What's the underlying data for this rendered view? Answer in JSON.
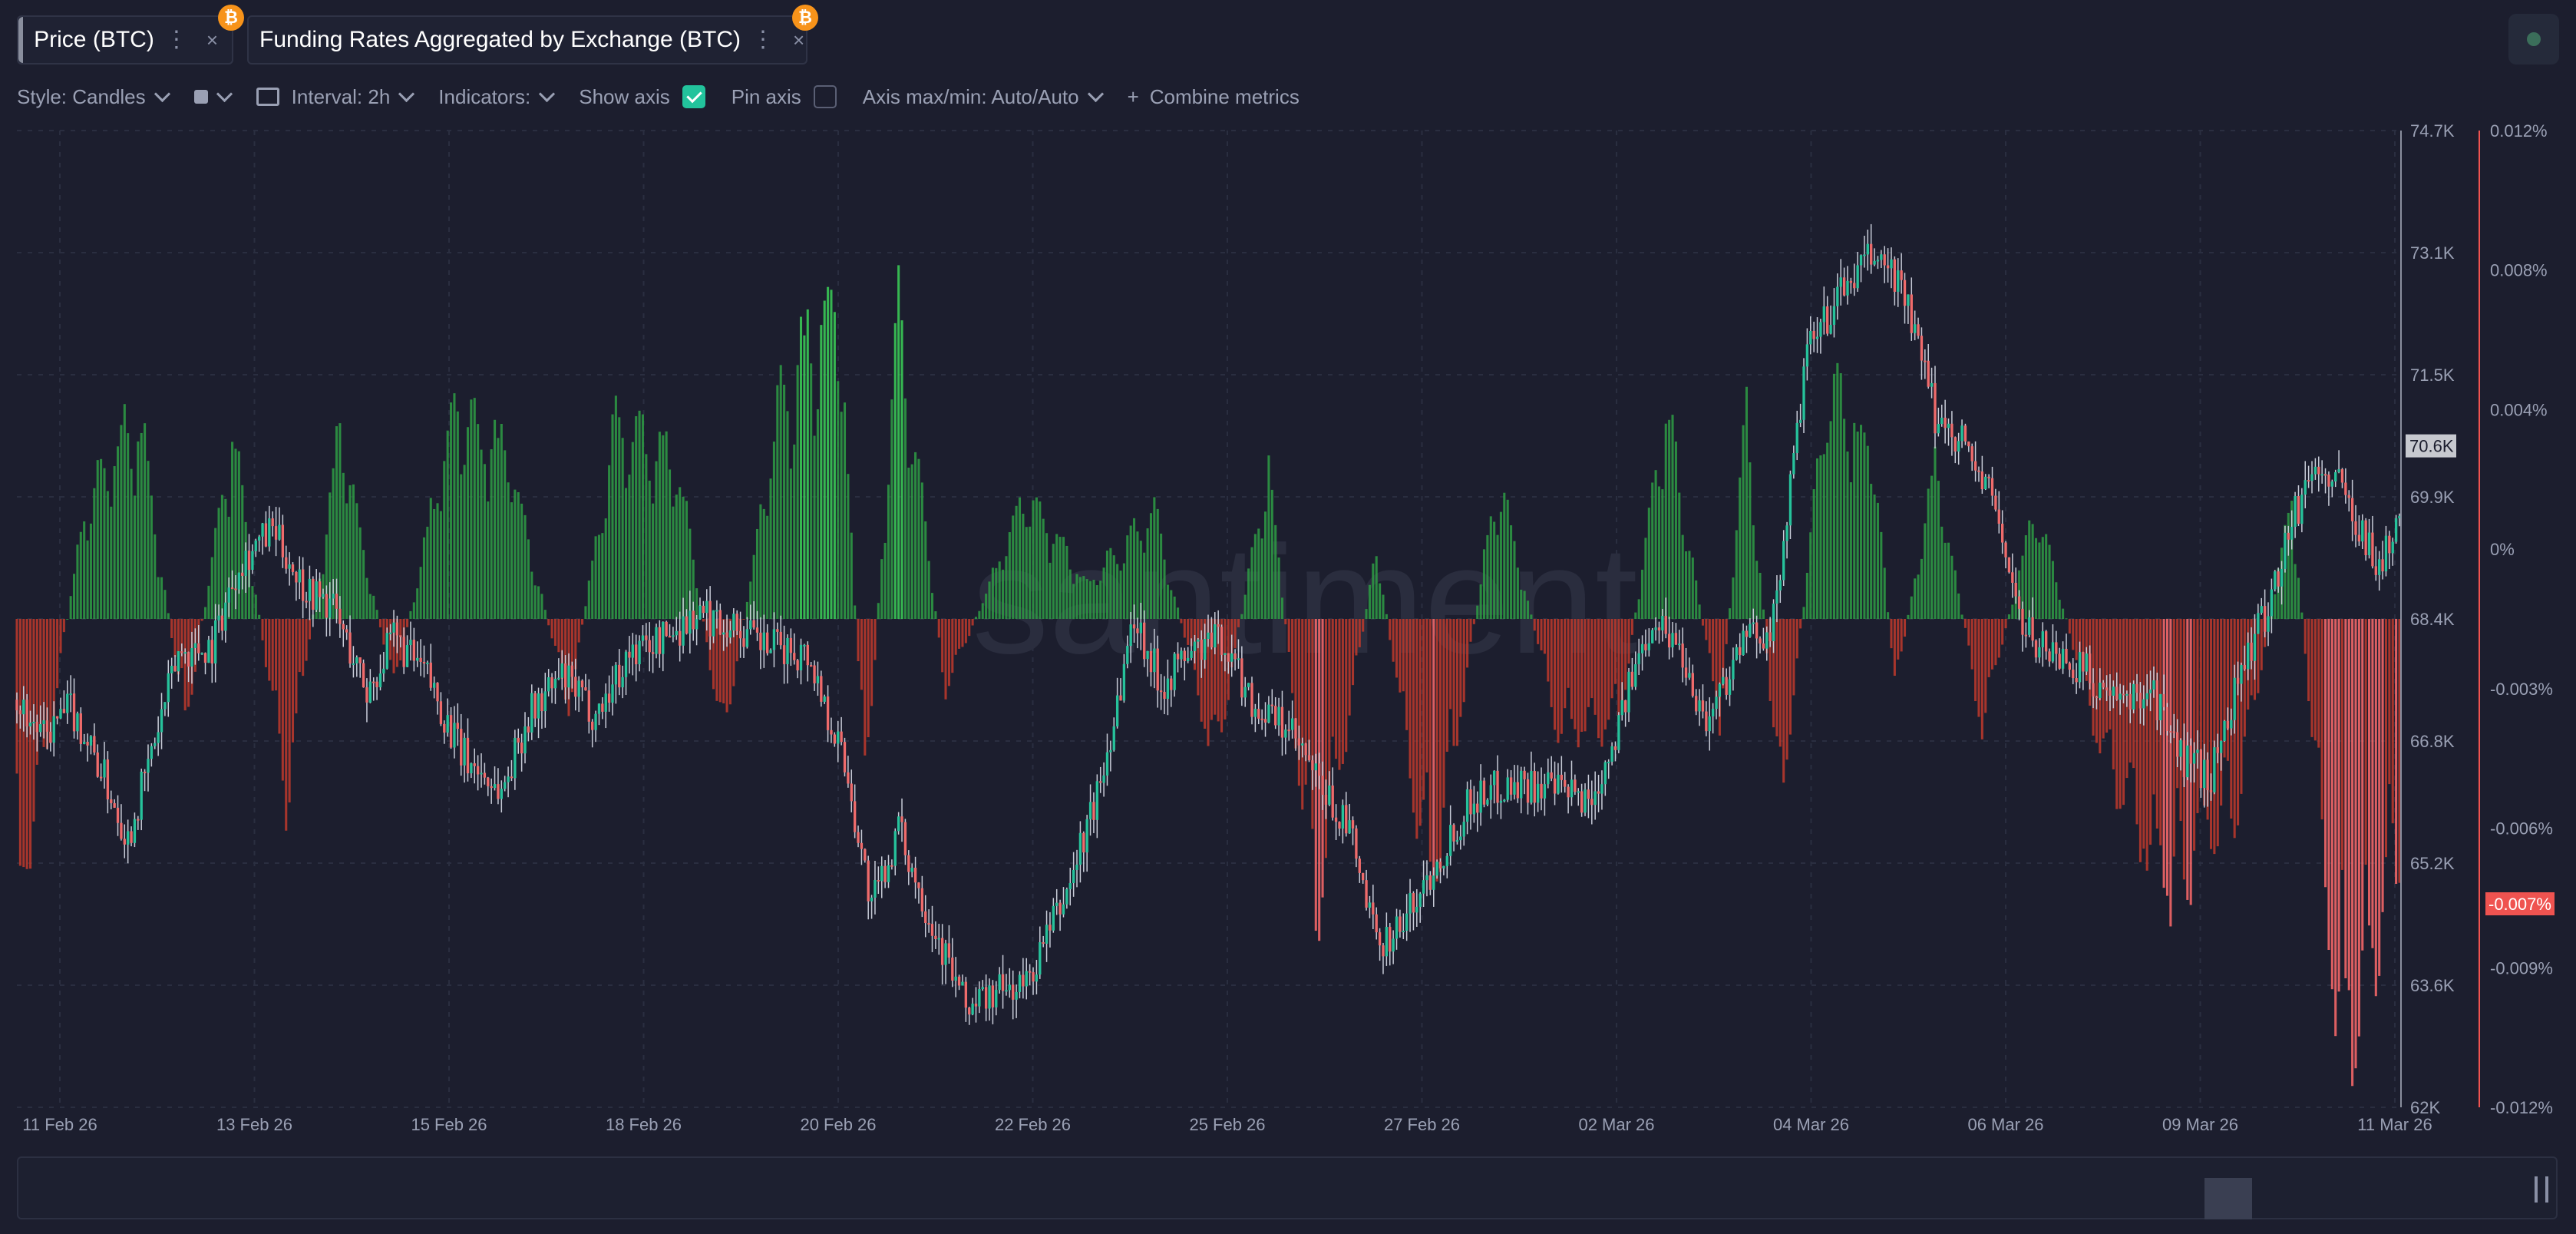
{
  "tabs": [
    {
      "label": "Price (BTC)",
      "color": "#8a8f9e",
      "badge": "₿"
    },
    {
      "label": "Funding Rates Aggregated by Exchange (BTC)",
      "color": "#ef5350",
      "badge": "₿"
    }
  ],
  "toolbar": {
    "style_label": "Style: Candles",
    "interval_label": "Interval: 2h",
    "indicators_label": "Indicators:",
    "show_axis_label": "Show axis",
    "show_axis_checked": true,
    "pin_axis_label": "Pin axis",
    "pin_axis_checked": false,
    "axis_minmax_label": "Axis max/min: Auto/Auto",
    "combine_label": "Combine metrics"
  },
  "watermark": "santiment",
  "chart_data": {
    "type": "candlestick+bar",
    "x_tick_labels": [
      "11 Feb 26",
      "13 Feb 26",
      "15 Feb 26",
      "18 Feb 26",
      "20 Feb 26",
      "22 Feb 26",
      "25 Feb 26",
      "27 Feb 26",
      "02 Mar 26",
      "04 Mar 26",
      "06 Mar 26",
      "09 Mar 26",
      "11 Mar 26"
    ],
    "price_axis": {
      "tick_labels": [
        "74.7K",
        "73.1K",
        "71.5K",
        "69.9K",
        "68.4K",
        "66.8K",
        "65.2K",
        "63.6K",
        "62K"
      ],
      "ylim": [
        62000,
        74700
      ],
      "current_label": "70.6K",
      "current_value": 70600
    },
    "funding_axis": {
      "tick_labels": [
        "0.012%",
        "0.008%",
        "0.004%",
        "0%",
        "-0.003%",
        "-0.006%",
        "-0.009%",
        "-0.012%"
      ],
      "ylim": [
        -0.012,
        0.012
      ],
      "current_label": "-0.007%",
      "current_value": -0.007
    },
    "series": [
      {
        "name": "Price (BTC)",
        "type": "candlestick",
        "up_color": "#26c29b",
        "down_color": "#ef6b6b",
        "approx_close_path": [
          [
            0,
            67.3
          ],
          [
            8,
            66.8
          ],
          [
            16,
            67.2
          ],
          [
            25,
            66.4
          ],
          [
            33,
            65.5
          ],
          [
            40,
            66.6
          ],
          [
            48,
            67.9
          ],
          [
            58,
            68.0
          ],
          [
            66,
            69.1
          ],
          [
            76,
            69.5
          ],
          [
            85,
            68.8
          ],
          [
            94,
            68.5
          ],
          [
            104,
            67.4
          ],
          [
            112,
            68.1
          ],
          [
            122,
            67.6
          ],
          [
            132,
            66.6
          ],
          [
            144,
            66.1
          ],
          [
            152,
            67.1
          ],
          [
            162,
            67.6
          ],
          [
            172,
            67.1
          ],
          [
            182,
            67.9
          ],
          [
            192,
            68.1
          ],
          [
            202,
            68.4
          ],
          [
            212,
            68.3
          ],
          [
            222,
            68.0
          ],
          [
            235,
            67.9
          ],
          [
            246,
            66.5
          ],
          [
            254,
            64.6
          ],
          [
            262,
            65.6
          ],
          [
            272,
            64.4
          ],
          [
            282,
            63.3
          ],
          [
            292,
            63.5
          ],
          [
            300,
            63.6
          ],
          [
            312,
            64.8
          ],
          [
            322,
            66.2
          ],
          [
            332,
            68.4
          ],
          [
            340,
            67.5
          ],
          [
            348,
            67.9
          ],
          [
            358,
            68.1
          ],
          [
            368,
            67.2
          ],
          [
            378,
            66.9
          ],
          [
            388,
            66.1
          ],
          [
            396,
            65.6
          ],
          [
            404,
            64.1
          ],
          [
            412,
            64.4
          ],
          [
            422,
            65.2
          ],
          [
            432,
            66.0
          ],
          [
            442,
            66.2
          ],
          [
            452,
            66.2
          ],
          [
            458,
            66.1
          ],
          [
            468,
            66.0
          ],
          [
            476,
            67.0
          ],
          [
            486,
            68.4
          ],
          [
            494,
            68.0
          ],
          [
            502,
            67.0
          ],
          [
            512,
            68.0
          ],
          [
            522,
            68.3
          ],
          [
            532,
            71.8
          ],
          [
            542,
            72.6
          ],
          [
            552,
            73.1
          ],
          [
            560,
            72.7
          ],
          [
            570,
            71.0
          ],
          [
            578,
            70.7
          ],
          [
            588,
            69.8
          ],
          [
            596,
            68.2
          ],
          [
            606,
            67.9
          ],
          [
            614,
            67.7
          ],
          [
            624,
            67.2
          ],
          [
            634,
            67.5
          ],
          [
            642,
            66.6
          ],
          [
            652,
            66.3
          ],
          [
            660,
            67.6
          ],
          [
            668,
            68.4
          ],
          [
            676,
            69.6
          ],
          [
            682,
            70.3
          ],
          [
            690,
            70.1
          ],
          [
            696,
            69.6
          ],
          [
            702,
            69.0
          ],
          [
            708,
            69.7
          ]
        ]
      },
      {
        "name": "Funding Rates Aggregated by Exchange (BTC)",
        "type": "bar",
        "positive_color": "#2e9e44",
        "negative_color": "#c0392b",
        "approx_values": [
          [
            0,
            -0.008
          ],
          [
            10,
            -0.003
          ],
          [
            20,
            0.003
          ],
          [
            36,
            0.0058
          ],
          [
            50,
            -0.003
          ],
          [
            64,
            0.0052
          ],
          [
            80,
            -0.005
          ],
          [
            96,
            0.0052
          ],
          [
            112,
            -0.002
          ],
          [
            130,
            0.006
          ],
          [
            146,
            0.0045
          ],
          [
            164,
            -0.0025
          ],
          [
            178,
            0.0055
          ],
          [
            196,
            0.0045
          ],
          [
            210,
            -0.0035
          ],
          [
            226,
            0.0058
          ],
          [
            244,
            0.0093
          ],
          [
            252,
            -0.005
          ],
          [
            262,
            0.0085
          ],
          [
            276,
            -0.002
          ],
          [
            300,
            0.0035
          ],
          [
            318,
            0.001
          ],
          [
            338,
            0.003
          ],
          [
            356,
            -0.004
          ],
          [
            372,
            0.0043
          ],
          [
            386,
            -0.0085
          ],
          [
            404,
            0.002
          ],
          [
            420,
            -0.008
          ],
          [
            440,
            0.004
          ],
          [
            458,
            -0.003
          ],
          [
            476,
            -0.003
          ],
          [
            490,
            0.006
          ],
          [
            506,
            -0.003
          ],
          [
            514,
            0.006
          ],
          [
            524,
            -0.0055
          ],
          [
            538,
            0.0065
          ],
          [
            552,
            0.0045
          ],
          [
            558,
            -0.002
          ],
          [
            570,
            0.0043
          ],
          [
            584,
            -0.003
          ],
          [
            600,
            0.0033
          ],
          [
            620,
            -0.004
          ],
          [
            640,
            -0.0075
          ],
          [
            660,
            -0.005
          ],
          [
            676,
            0.0035
          ],
          [
            690,
            -0.012
          ],
          [
            700,
            -0.0095
          ],
          [
            708,
            -0.007
          ]
        ]
      }
    ]
  }
}
